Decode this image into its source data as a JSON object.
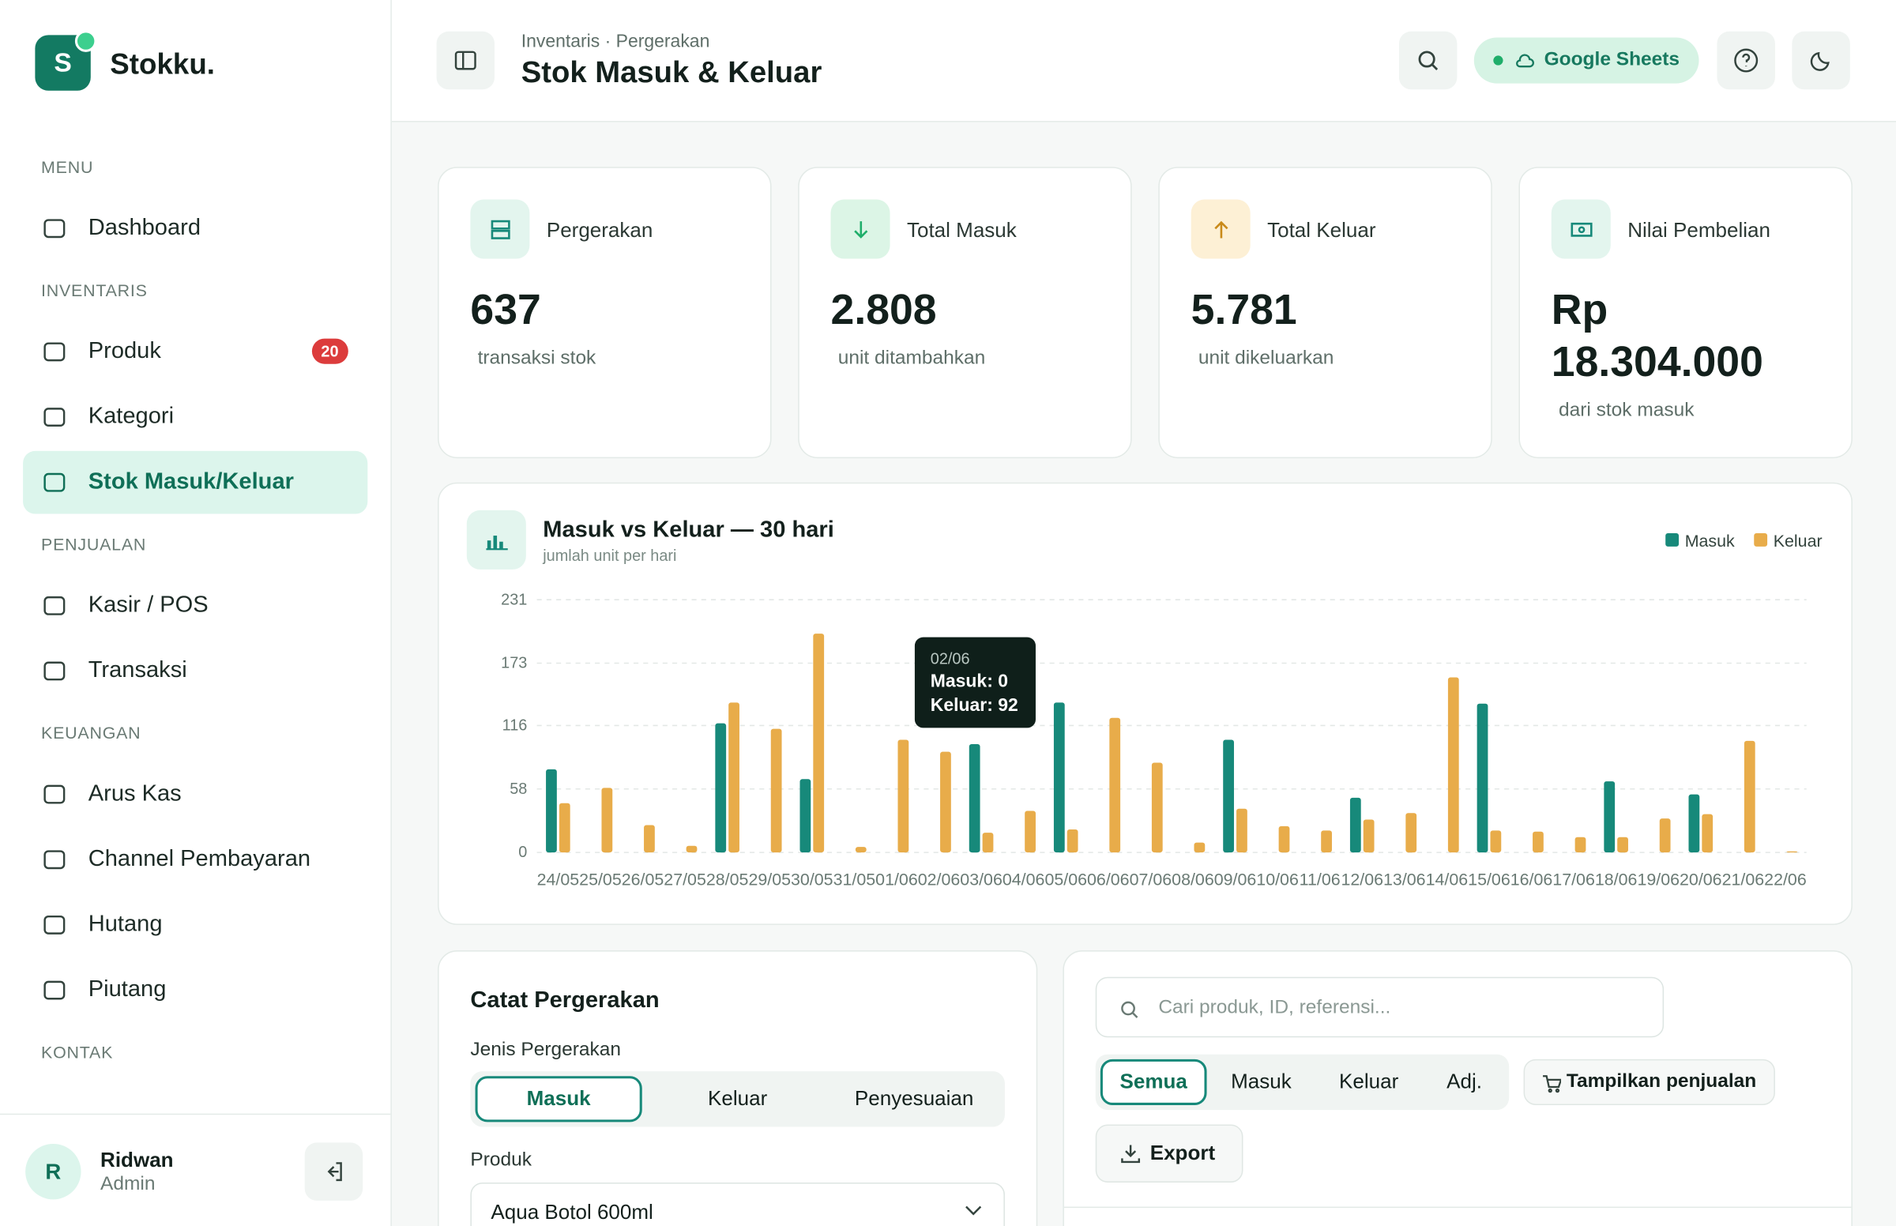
{
  "brand": {
    "logo": "S",
    "name": "Stokku."
  },
  "sidebar": {
    "sections": [
      {
        "title": "MENU",
        "items": [
          {
            "label": "Dashboard"
          }
        ]
      },
      {
        "title": "INVENTARIS",
        "items": [
          {
            "label": "Produk",
            "badge": "20"
          },
          {
            "label": "Kategori"
          },
          {
            "label": "Stok Masuk/Keluar",
            "active": true
          }
        ]
      },
      {
        "title": "PENJUALAN",
        "items": [
          {
            "label": "Kasir / POS"
          },
          {
            "label": "Transaksi"
          }
        ]
      },
      {
        "title": "KEUANGAN",
        "items": [
          {
            "label": "Arus Kas"
          },
          {
            "label": "Channel Pembayaran"
          },
          {
            "label": "Hutang"
          },
          {
            "label": "Piutang"
          }
        ]
      },
      {
        "title": "KONTAK",
        "items": []
      }
    ]
  },
  "user": {
    "initial": "R",
    "name": "Ridwan",
    "role": "Admin"
  },
  "header": {
    "breadcrumb": "Inventaris · Pergerakan",
    "title": "Stok Masuk & Keluar",
    "sync": "Google Sheets"
  },
  "stats": [
    {
      "label": "Pergerakan",
      "value": "637",
      "note": "transaksi stok"
    },
    {
      "label": "Total Masuk",
      "value": "2.808",
      "note": "unit ditambahkan"
    },
    {
      "label": "Total Keluar",
      "value": "5.781",
      "note": "unit dikeluarkan"
    },
    {
      "label": "Nilai Pembelian",
      "value": "Rp 18.304.000",
      "note": "dari stok masuk"
    }
  ],
  "chart_data": {
    "type": "bar",
    "title": "Masuk vs Keluar — 30 hari",
    "subtitle": "jumlah unit per hari",
    "categories": [
      "24/05",
      "25/05",
      "26/05",
      "27/05",
      "28/05",
      "29/05",
      "30/05",
      "31/05",
      "01/06",
      "02/06",
      "03/06",
      "04/06",
      "05/06",
      "06/06",
      "07/06",
      "08/06",
      "09/06",
      "10/06",
      "11/06",
      "12/06",
      "13/06",
      "14/06",
      "15/06",
      "16/06",
      "17/06",
      "18/06",
      "19/06",
      "20/06",
      "21/06",
      "22/06"
    ],
    "series": [
      {
        "name": "Masuk",
        "color": "#17897a",
        "values": [
          76,
          0,
          0,
          0,
          118,
          0,
          67,
          0,
          0,
          0,
          99,
          0,
          137,
          0,
          0,
          0,
          103,
          0,
          0,
          50,
          0,
          0,
          136,
          0,
          0,
          65,
          0,
          53,
          0,
          0
        ]
      },
      {
        "name": "Keluar",
        "color": "#e8ac4a",
        "values": [
          45,
          59,
          25,
          6,
          137,
          113,
          200,
          5,
          103,
          92,
          18,
          38,
          21,
          123,
          82,
          9,
          40,
          24,
          20,
          30,
          36,
          160,
          20,
          19,
          14,
          14,
          31,
          35,
          102,
          1
        ]
      }
    ],
    "ylim": [
      0,
      231
    ],
    "yticks": [
      0,
      58,
      116,
      173,
      231
    ],
    "grid": true,
    "legend": "top-right",
    "tooltip": {
      "category": "02/06",
      "lines": [
        "Masuk: 0",
        "Keluar: 92"
      ]
    }
  },
  "form": {
    "title": "Catat Pergerakan",
    "type_label": "Jenis Pergerakan",
    "types": [
      "Masuk",
      "Keluar",
      "Penyesuaian"
    ],
    "product_label": "Produk",
    "product_value": "Aqua Botol 600ml"
  },
  "list": {
    "search": "Cari produk, ID, referensi...",
    "filters": [
      "Semua",
      "Masuk",
      "Keluar",
      "Adj."
    ],
    "show_sales": "Tampilkan penjualan",
    "export": "Export"
  }
}
